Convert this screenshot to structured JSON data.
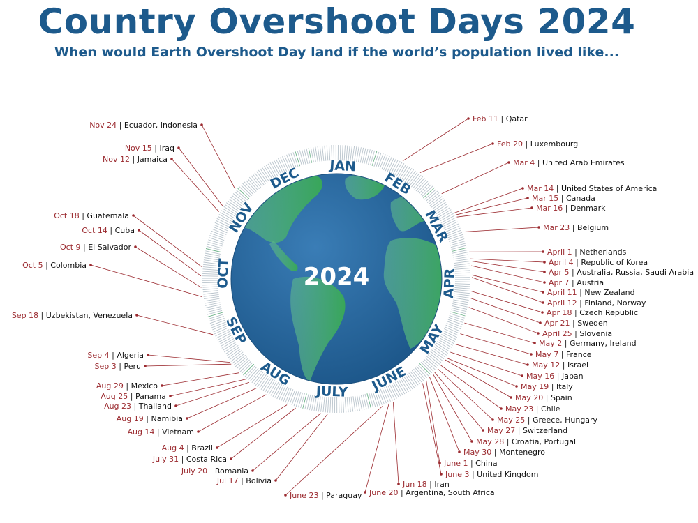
{
  "header": {
    "title": "Country Overshoot Days 2024",
    "subtitle": "When would Earth Overshoot Day land if the world’s population lived like..."
  },
  "center_label": "2024",
  "colors": {
    "brand_blue": "#1d5a8c",
    "date_red": "#9b2a2f",
    "ocean": "#2a6aa0",
    "land": "#3aa05a"
  },
  "months": [
    "JAN",
    "FEB",
    "MAR",
    "APR",
    "MAY",
    "JUNE",
    "JULY",
    "AUG",
    "SEP",
    "OCT",
    "NOV",
    "DEC"
  ],
  "entries": [
    {
      "date": "Feb 11",
      "countries": "Qatar",
      "day": 42
    },
    {
      "date": "Feb 20",
      "countries": "Luxembourg",
      "day": 51
    },
    {
      "date": "Mar 4",
      "countries": "United Arab Emirates",
      "day": 64
    },
    {
      "date": "Mar 14",
      "countries": "United States of America",
      "day": 74
    },
    {
      "date": "Mar 15",
      "countries": "Canada",
      "day": 75
    },
    {
      "date": "Mar 16",
      "countries": "Denmark",
      "day": 76
    },
    {
      "date": "Mar 23",
      "countries": "Belgium",
      "day": 83
    },
    {
      "date": "April 1",
      "countries": "Netherlands",
      "day": 92
    },
    {
      "date": "April 4",
      "countries": "Republic of Korea",
      "day": 95
    },
    {
      "date": "Apr 5",
      "countries": "Australia, Russia, Saudi Arabia",
      "day": 96
    },
    {
      "date": "Apr 7",
      "countries": "Austria",
      "day": 98
    },
    {
      "date": "April 11",
      "countries": "New Zealand",
      "day": 102
    },
    {
      "date": "April 12",
      "countries": "Finland, Norway",
      "day": 103
    },
    {
      "date": "Apr 18",
      "countries": "Czech Republic",
      "day": 109
    },
    {
      "date": "Apr 21",
      "countries": "Sweden",
      "day": 112
    },
    {
      "date": "April 25",
      "countries": "Slovenia",
      "day": 116
    },
    {
      "date": "May 2",
      "countries": "Germany, Ireland",
      "day": 123
    },
    {
      "date": "May 7",
      "countries": "France",
      "day": 128
    },
    {
      "date": "May 12",
      "countries": "Israel",
      "day": 133
    },
    {
      "date": "May 16",
      "countries": "Japan",
      "day": 137
    },
    {
      "date": "May 19",
      "countries": "Italy",
      "day": 140
    },
    {
      "date": "May 20",
      "countries": "Spain",
      "day": 141
    },
    {
      "date": "May 23",
      "countries": "Chile",
      "day": 144
    },
    {
      "date": "May 25",
      "countries": "Greece, Hungary",
      "day": 146
    },
    {
      "date": "May 27",
      "countries": "Switzerland",
      "day": 148
    },
    {
      "date": "May 28",
      "countries": "Croatia, Portugal",
      "day": 149
    },
    {
      "date": "May 30",
      "countries": "Montenegro",
      "day": 151
    },
    {
      "date": "June 1",
      "countries": "China",
      "day": 153
    },
    {
      "date": "June 3",
      "countries": "United Kingdom",
      "day": 155
    },
    {
      "date": "Jun 18",
      "countries": "Iran",
      "day": 170
    },
    {
      "date": "June 20",
      "countries": "Argentina, South Africa",
      "day": 172
    },
    {
      "date": "June 23",
      "countries": "Paraguay",
      "day": 175
    },
    {
      "date": "Jul 17",
      "countries": "Bolivia",
      "day": 199
    },
    {
      "date": "July 20",
      "countries": "Romania",
      "day": 202
    },
    {
      "date": "July 31",
      "countries": "Costa Rica",
      "day": 213
    },
    {
      "date": "Aug 4",
      "countries": "Brazil",
      "day": 217
    },
    {
      "date": "Aug 14",
      "countries": "Vietnam",
      "day": 227
    },
    {
      "date": "Aug 19",
      "countries": "Namibia",
      "day": 232
    },
    {
      "date": "Aug 23",
      "countries": "Thailand",
      "day": 236
    },
    {
      "date": "Aug 25",
      "countries": "Panama",
      "day": 238
    },
    {
      "date": "Aug 29",
      "countries": "Mexico",
      "day": 242
    },
    {
      "date": "Sep 3",
      "countries": "Peru",
      "day": 247
    },
    {
      "date": "Sep 4",
      "countries": "Algeria",
      "day": 248
    },
    {
      "date": "Sep 18",
      "countries": "Uzbekistan, Venezuela",
      "day": 262
    },
    {
      "date": "Oct 5",
      "countries": "Colombia",
      "day": 279
    },
    {
      "date": "Oct 9",
      "countries": "El Salvador",
      "day": 283
    },
    {
      "date": "Oct 14",
      "countries": "Cuba",
      "day": 288
    },
    {
      "date": "Oct 18",
      "countries": "Guatemala",
      "day": 292
    },
    {
      "date": "Nov 12",
      "countries": "Jamaica",
      "day": 317
    },
    {
      "date": "Nov 15",
      "countries": "Iraq",
      "day": 320
    },
    {
      "date": "Nov 24",
      "countries": "Ecuador, Indonesia",
      "day": 329
    }
  ]
}
